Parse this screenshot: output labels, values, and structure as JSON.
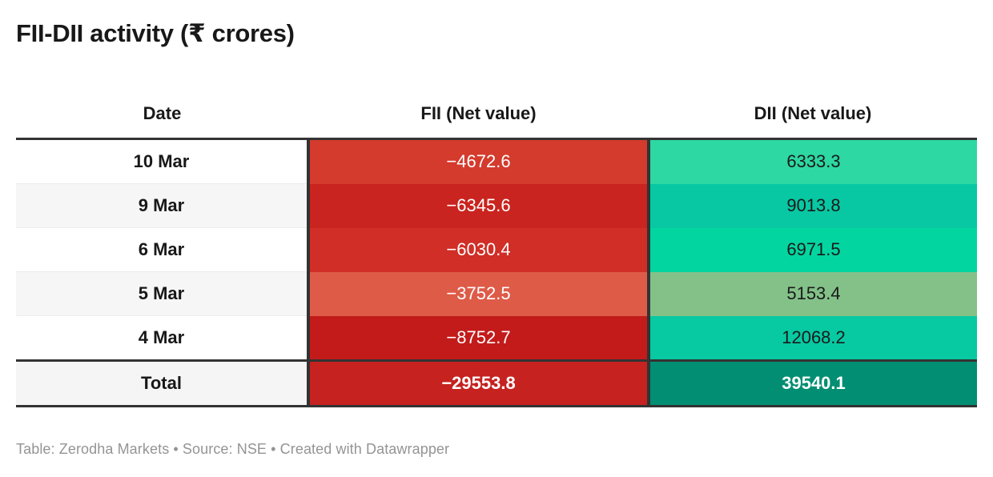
{
  "title": "FII-DII activity (₹ crores)",
  "table": {
    "headers": {
      "date": "Date",
      "fii": "FII (Net value)",
      "dii": "DII (Net value)"
    },
    "rows": [
      {
        "date": "10 Mar",
        "fii": "−4672.6",
        "dii": "6333.3",
        "fii_bg": "#d43b2d",
        "fii_fg": "#ffffff",
        "dii_bg": "#2dd8a2",
        "dii_fg": "#1a1a1a"
      },
      {
        "date": "9 Mar",
        "fii": "−6345.6",
        "dii": "9013.8",
        "fii_bg": "#c9241f",
        "fii_fg": "#ffffff",
        "dii_bg": "#08c8a3",
        "dii_fg": "#1a1a1a"
      },
      {
        "date": "6 Mar",
        "fii": "−6030.4",
        "dii": "6971.5",
        "fii_bg": "#d02e26",
        "fii_fg": "#ffffff",
        "dii_bg": "#03d5a0",
        "dii_fg": "#1a1a1a"
      },
      {
        "date": "5 Mar",
        "fii": "−3752.5",
        "dii": "5153.4",
        "fii_bg": "#de5b48",
        "fii_fg": "#ffffff",
        "dii_bg": "#83c189",
        "dii_fg": "#1a1a1a"
      },
      {
        "date": "4 Mar",
        "fii": "−8752.7",
        "dii": "12068.2",
        "fii_bg": "#c21b1a",
        "fii_fg": "#ffffff",
        "dii_bg": "#07c9a2",
        "dii_fg": "#1a1a1a"
      }
    ],
    "total": {
      "date": "Total",
      "fii": "−29553.8",
      "dii": "39540.1",
      "fii_bg": "#c62220",
      "fii_fg": "#ffffff",
      "dii_bg": "#028e72",
      "dii_fg": "#ffffff"
    }
  },
  "footer": "Table: Zerodha Markets • Source: NSE • Created with Datawrapper",
  "colors": {
    "border_dark": "#333333",
    "row_stripe": "#f6f6f6",
    "footer_text": "#949494"
  },
  "chart_data": {
    "type": "table",
    "title": "FII-DII activity (₹ crores)",
    "columns": [
      "Date",
      "FII (Net value)",
      "DII (Net value)"
    ],
    "categories": [
      "10 Mar",
      "9 Mar",
      "6 Mar",
      "5 Mar",
      "4 Mar",
      "Total"
    ],
    "series": [
      {
        "name": "FII (Net value)",
        "values": [
          -4672.6,
          -6345.6,
          -6030.4,
          -3752.5,
          -8752.7,
          -29553.8
        ]
      },
      {
        "name": "DII (Net value)",
        "values": [
          6333.3,
          9013.8,
          6971.5,
          5153.4,
          12068.2,
          39540.1
        ]
      }
    ],
    "source": "Table: Zerodha Markets • Source: NSE • Created with Datawrapper"
  }
}
